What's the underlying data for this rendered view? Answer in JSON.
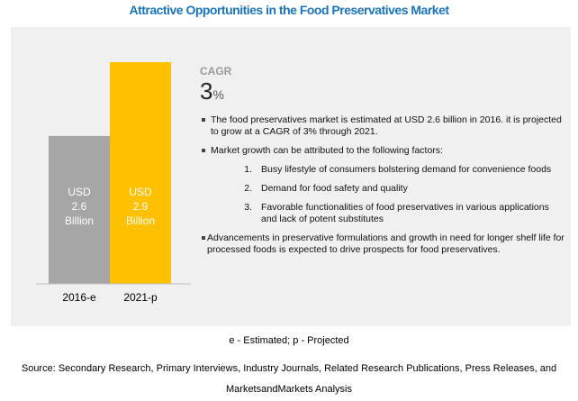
{
  "title": "Attractive Opportunities in the Food Preservatives Market",
  "chart_data": {
    "type": "bar",
    "categories": [
      "2016-e",
      "2021-p"
    ],
    "values": [
      2.6,
      2.9
    ],
    "labels": [
      "USD 2.6 Billion",
      "USD 2.9 Billion"
    ],
    "unit": "USD Billion",
    "colors": [
      "#a6a6a6",
      "#ffc000"
    ],
    "ylim": [
      0,
      3.6
    ]
  },
  "bar_labels": [
    {
      "l1": "USD",
      "l2": "2.6",
      "l3": "Billion"
    },
    {
      "l1": "USD",
      "l2": "2.9",
      "l3": "Billion"
    }
  ],
  "cagr": {
    "label": "CAGR",
    "value": "3",
    "unit": "%"
  },
  "bullets": {
    "b1": "The food preservatives market is estimated at USD 2.6 billion in 2016. it is projected to grow at a CAGR of 3% through 2021.",
    "b2": "Market growth can be attributed to the following factors:",
    "factors": [
      {
        "n": "1.",
        "t": "Busy lifestyle of consumers bolstering demand for convenience foods"
      },
      {
        "n": "2.",
        "t": "Demand for food safety and quality"
      },
      {
        "n": "3.",
        "t": "Favorable functionalities of food preservatives in various applications and lack of potent substitutes"
      }
    ],
    "b3": "Advancements in preservative formulations and growth in need for longer shelf life for processed foods is expected to drive prospects for food preservatives."
  },
  "legend": "e - Estimated; p - Projected",
  "source": "Source: Secondary Research, Primary Interviews, Industry Journals, Related Research Publications, Press Releases, and MarketsandMarkets Analysis"
}
